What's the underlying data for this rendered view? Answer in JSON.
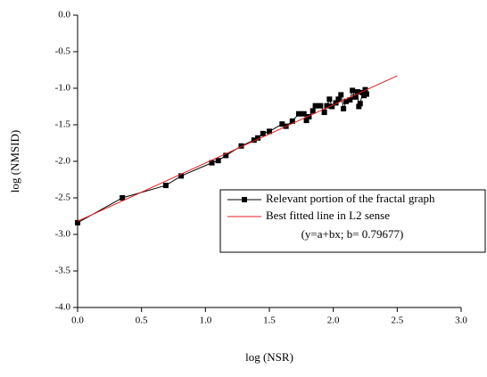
{
  "chart_data": {
    "type": "line",
    "x_label": "log (NSR)",
    "y_label": "log (NMSID)",
    "xlim": [
      0,
      3
    ],
    "ylim": [
      -4,
      0
    ],
    "xticks": [
      {
        "value": 0,
        "label": "0.0"
      },
      0.5,
      {
        "value": 1,
        "label": "1.0"
      },
      1.5,
      {
        "value": 2,
        "label": "2.0"
      },
      2.5,
      {
        "value": 3,
        "label": "3.0"
      }
    ],
    "yticks": [
      {
        "value": 0,
        "label": "0.0"
      },
      -0.5,
      {
        "value": -1,
        "label": "-1.0"
      },
      -1.5,
      {
        "value": -2,
        "label": "-2.0"
      },
      -2.5,
      {
        "value": -3,
        "label": "-3.0"
      },
      -3.5,
      {
        "value": -4,
        "label": "-4.0"
      }
    ],
    "legend_position": "right",
    "annotation": "(y=a+bx; b= 0.79677)",
    "series": [
      {
        "name": "Relevant portion of the fractal graph",
        "color": "#000000",
        "marker": "square",
        "x": [
          0,
          0.35,
          0.69,
          0.81,
          1.05,
          1.1,
          1.16,
          1.28,
          1.38,
          1.41,
          1.45,
          1.5,
          1.6,
          1.63,
          1.68,
          1.73,
          1.77,
          1.79,
          1.81,
          1.84,
          1.86,
          1.9,
          1.93,
          1.95,
          1.97,
          1.99,
          2.02,
          2.04,
          2.06,
          2.08,
          2.1,
          2.13,
          2.15,
          2.17,
          2.19,
          2.2,
          2.21,
          2.23,
          2.24,
          2.25,
          2.26
        ],
        "values": [
          -2.84,
          -2.5,
          -2.33,
          -2.2,
          -2.02,
          -1.99,
          -1.92,
          -1.79,
          -1.71,
          -1.68,
          -1.62,
          -1.59,
          -1.49,
          -1.52,
          -1.45,
          -1.35,
          -1.35,
          -1.44,
          -1.39,
          -1.31,
          -1.24,
          -1.24,
          -1.33,
          -1.24,
          -1.15,
          -1.25,
          -1.2,
          -1.15,
          -1.09,
          -1.28,
          -1.18,
          -1.16,
          -1.03,
          -1.12,
          -1.05,
          -1.25,
          -1.21,
          -1.06,
          -1.1,
          -1.02,
          -1.08
        ]
      },
      {
        "name": "Best fitted line in L2 sense",
        "color": "#e02020",
        "marker": "none",
        "x": [
          0,
          2.5
        ],
        "values": [
          -2.82,
          -0.83
        ]
      }
    ]
  }
}
